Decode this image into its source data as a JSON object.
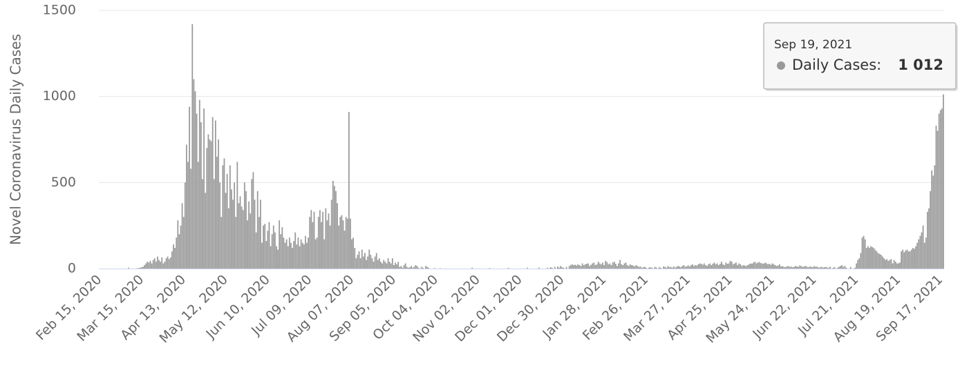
{
  "chart_data": {
    "type": "bar",
    "y_label": "Novel Coronavirus Daily Cases",
    "color": "#999999",
    "grid": true,
    "ylim": [
      0,
      1500
    ],
    "yticks": [
      0,
      500,
      1000,
      1500
    ],
    "categories": [
      "Feb 15, 2020",
      null,
      null,
      null,
      null,
      null,
      null,
      null,
      null,
      null,
      null,
      null,
      null,
      null,
      null,
      null,
      null,
      null,
      null,
      null,
      null,
      null,
      null,
      null,
      null,
      null,
      null,
      null,
      null,
      "Mar 15, 2020",
      null,
      null,
      null,
      null,
      null,
      null,
      null,
      null,
      null,
      null,
      null,
      null,
      null,
      null,
      null,
      null,
      null,
      null,
      null,
      null,
      null,
      null,
      null,
      null,
      null,
      null,
      null,
      null,
      "Apr 13, 2020",
      null,
      null,
      null,
      null,
      null,
      null,
      null,
      null,
      null,
      null,
      null,
      null,
      null,
      null,
      null,
      null,
      null,
      null,
      null,
      null,
      null,
      null,
      null,
      null,
      null,
      null,
      null,
      null,
      "May 12, 2020",
      null,
      null,
      null,
      null,
      null,
      null,
      null,
      null,
      null,
      null,
      null,
      null,
      null,
      null,
      null,
      null,
      null,
      null,
      null,
      null,
      null,
      null,
      null,
      null,
      null,
      null,
      null,
      null,
      "Jun 10, 2020",
      null,
      null,
      null,
      null,
      null,
      null,
      null,
      null,
      null,
      null,
      null,
      null,
      null,
      null,
      null,
      null,
      null,
      null,
      null,
      null,
      null,
      null,
      null,
      null,
      null,
      null,
      null,
      null,
      "Jul 09, 2020",
      null,
      null,
      null,
      null,
      null,
      null,
      null,
      null,
      null,
      null,
      null,
      null,
      null,
      null,
      null,
      null,
      null,
      null,
      null,
      null,
      null,
      null,
      null,
      null,
      null,
      null,
      null,
      null,
      "Aug 07, 2020",
      null,
      null,
      null,
      null,
      null,
      null,
      null,
      null,
      null,
      null,
      null,
      null,
      null,
      null,
      null,
      null,
      null,
      null,
      null,
      null,
      null,
      null,
      null,
      null,
      null,
      null,
      null,
      null,
      "Sep 05, 2020",
      null,
      null,
      null,
      null,
      null,
      null,
      null,
      null,
      null,
      null,
      null,
      null,
      null,
      null,
      null,
      null,
      null,
      null,
      null,
      null,
      null,
      null,
      null,
      null,
      null,
      null,
      null,
      null,
      "Oct 04, 2020",
      null,
      null,
      null,
      null,
      null,
      null,
      null,
      null,
      null,
      null,
      null,
      null,
      null,
      null,
      null,
      null,
      null,
      null,
      null,
      null,
      null,
      null,
      null,
      null,
      null,
      null,
      null,
      null,
      "Nov 02, 2020",
      null,
      null,
      null,
      null,
      null,
      null,
      null,
      null,
      null,
      null,
      null,
      null,
      null,
      null,
      null,
      null,
      null,
      null,
      null,
      null,
      null,
      null,
      null,
      null,
      null,
      null,
      null,
      null,
      "Dec 01, 2020",
      null,
      null,
      null,
      null,
      null,
      null,
      null,
      null,
      null,
      null,
      null,
      null,
      null,
      null,
      null,
      null,
      null,
      null,
      null,
      null,
      null,
      null,
      null,
      null,
      null,
      null,
      null,
      null,
      "Dec 30, 2020",
      null,
      null,
      null,
      null,
      null,
      null,
      null,
      null,
      null,
      null,
      null,
      null,
      null,
      null,
      null,
      null,
      null,
      null,
      null,
      null,
      null,
      null,
      null,
      null,
      null,
      null,
      null,
      null,
      "Jan 28, 2021",
      null,
      null,
      null,
      null,
      null,
      null,
      null,
      null,
      null,
      null,
      null,
      null,
      null,
      null,
      null,
      null,
      null,
      null,
      null,
      null,
      null,
      null,
      null,
      null,
      null,
      null,
      null,
      null,
      "Feb 26, 2021",
      null,
      null,
      null,
      null,
      null,
      null,
      null,
      null,
      null,
      null,
      null,
      null,
      null,
      null,
      null,
      null,
      null,
      null,
      null,
      null,
      null,
      null,
      null,
      null,
      null,
      null,
      null,
      null,
      "Mar 27, 2021",
      null,
      null,
      null,
      null,
      null,
      null,
      null,
      null,
      null,
      null,
      null,
      null,
      null,
      null,
      null,
      null,
      null,
      null,
      null,
      null,
      null,
      null,
      null,
      null,
      null,
      null,
      null,
      null,
      "Apr 25, 2021",
      null,
      null,
      null,
      null,
      null,
      null,
      null,
      null,
      null,
      null,
      null,
      null,
      null,
      null,
      null,
      null,
      null,
      null,
      null,
      null,
      null,
      null,
      null,
      null,
      null,
      null,
      null,
      null,
      "May 24, 2021",
      null,
      null,
      null,
      null,
      null,
      null,
      null,
      null,
      null,
      null,
      null,
      null,
      null,
      null,
      null,
      null,
      null,
      null,
      null,
      null,
      null,
      null,
      null,
      null,
      null,
      null,
      null,
      null,
      "Jun 22, 2021",
      null,
      null,
      null,
      null,
      null,
      null,
      null,
      null,
      null,
      null,
      null,
      null,
      null,
      null,
      null,
      null,
      null,
      null,
      null,
      null,
      null,
      null,
      null,
      null,
      null,
      null,
      null,
      null,
      "Jul 21, 2021",
      null,
      null,
      null,
      null,
      null,
      null,
      null,
      null,
      null,
      null,
      null,
      null,
      null,
      null,
      null,
      null,
      null,
      null,
      null,
      null,
      null,
      null,
      null,
      null,
      null,
      null,
      null,
      null,
      "Aug 19, 2021",
      null,
      null,
      null,
      null,
      null,
      null,
      null,
      null,
      null,
      null,
      null,
      null,
      null,
      null,
      null,
      null,
      null,
      null,
      null,
      null,
      null,
      null,
      null,
      null,
      null,
      null,
      null,
      null,
      "Sep 17, 2021",
      null,
      null
    ],
    "values": [
      0,
      0,
      0,
      0,
      0,
      0,
      0,
      0,
      0,
      0,
      0,
      0,
      0,
      0,
      0,
      0,
      0,
      0,
      0,
      0,
      5,
      0,
      0,
      0,
      0,
      0,
      2,
      3,
      5,
      8,
      10,
      20,
      30,
      40,
      35,
      45,
      30,
      50,
      60,
      40,
      70,
      50,
      40,
      65,
      30,
      40,
      60,
      70,
      55,
      65,
      100,
      140,
      120,
      180,
      280,
      200,
      250,
      380,
      300,
      500,
      720,
      620,
      940,
      580,
      1420,
      1100,
      1030,
      900,
      620,
      980,
      850,
      520,
      930,
      440,
      700,
      780,
      750,
      740,
      880,
      520,
      860,
      650,
      750,
      500,
      300,
      600,
      640,
      440,
      550,
      350,
      600,
      460,
      400,
      500,
      300,
      620,
      380,
      420,
      360,
      340,
      500,
      450,
      280,
      390,
      320,
      520,
      560,
      400,
      210,
      450,
      300,
      400,
      150,
      250,
      260,
      160,
      220,
      270,
      130,
      200,
      250,
      210,
      130,
      110,
      280,
      200,
      240,
      180,
      150,
      170,
      130,
      180,
      150,
      120,
      160,
      210,
      140,
      180,
      130,
      170,
      150,
      140,
      190,
      150,
      180,
      300,
      340,
      270,
      330,
      170,
      180,
      300,
      340,
      270,
      330,
      170,
      350,
      280,
      320,
      250,
      400,
      510,
      480,
      450,
      380,
      250,
      300,
      310,
      280,
      220,
      300,
      290,
      910,
      290,
      170,
      180,
      120,
      60,
      80,
      100,
      60,
      110,
      70,
      90,
      50,
      70,
      110,
      80,
      60,
      40,
      70,
      90,
      50,
      60,
      40,
      30,
      50,
      40,
      30,
      60,
      40,
      30,
      60,
      20,
      35,
      25,
      40,
      10,
      15,
      5,
      20,
      30,
      10,
      5,
      8,
      15,
      5,
      10,
      20,
      15,
      5,
      0,
      10,
      5,
      0,
      15,
      10,
      5,
      0,
      0,
      0,
      3,
      0,
      0,
      0,
      2,
      0,
      0,
      0,
      0,
      0,
      0,
      0,
      0,
      0,
      0,
      0,
      0,
      0,
      0,
      0,
      0,
      0,
      0,
      0,
      0,
      0,
      5,
      0,
      0,
      0,
      0,
      0,
      0,
      0,
      0,
      0,
      0,
      0,
      3,
      0,
      0,
      0,
      0,
      0,
      0,
      0,
      0,
      0,
      0,
      0,
      0,
      4,
      0,
      0,
      0,
      0,
      0,
      0,
      0,
      0,
      0,
      0,
      0,
      0,
      5,
      0,
      0,
      0,
      0,
      0,
      0,
      0,
      6,
      0,
      0,
      0,
      0,
      0,
      5,
      0,
      8,
      5,
      0,
      10,
      0,
      12,
      5,
      15,
      8,
      5,
      0,
      10,
      0,
      15,
      20,
      25,
      20,
      22,
      18,
      25,
      20,
      15,
      30,
      20,
      25,
      28,
      30,
      15,
      22,
      30,
      35,
      20,
      25,
      40,
      30,
      25,
      35,
      20,
      45,
      38,
      25,
      30,
      20,
      35,
      40,
      28,
      15,
      30,
      50,
      25,
      20,
      30,
      35,
      20,
      15,
      25,
      20,
      18,
      12,
      20,
      15,
      10,
      12,
      5,
      8,
      10,
      5,
      0,
      6,
      8,
      5,
      0,
      10,
      6,
      0,
      8,
      5,
      0,
      12,
      10,
      5,
      15,
      8,
      10,
      5,
      12,
      6,
      10,
      15,
      12,
      8,
      15,
      20,
      10,
      14,
      18,
      12,
      20,
      25,
      15,
      20,
      18,
      25,
      30,
      28,
      22,
      30,
      20,
      15,
      25,
      30,
      20,
      28,
      35,
      25,
      30,
      20,
      28,
      40,
      25,
      20,
      35,
      28,
      30,
      45,
      40,
      25,
      30,
      35,
      20,
      30,
      25,
      15,
      20,
      18,
      15,
      20,
      25,
      30,
      28,
      35,
      40,
      30,
      35,
      38,
      32,
      30,
      28,
      35,
      30,
      25,
      28,
      22,
      30,
      25,
      20,
      15,
      18,
      25,
      12,
      15,
      10,
      8,
      12,
      15,
      10,
      12,
      8,
      10,
      15,
      12,
      10,
      18,
      14,
      10,
      12,
      16,
      10,
      8,
      12,
      10,
      8,
      15,
      10,
      12,
      5,
      8,
      10,
      6,
      8,
      10,
      5,
      6,
      10,
      0,
      5,
      8,
      0,
      5,
      10,
      15,
      20,
      10,
      15,
      5,
      0,
      0,
      10,
      0,
      0,
      5,
      30,
      50,
      60,
      90,
      180,
      190,
      170,
      120,
      130,
      120,
      130,
      125,
      120,
      110,
      100,
      90,
      85,
      80,
      70,
      60,
      50,
      55,
      45,
      50,
      55,
      30,
      50,
      40,
      30,
      30,
      35,
      100,
      110,
      95,
      105,
      110,
      100,
      100,
      110,
      120,
      115,
      130,
      150,
      170,
      190,
      210,
      250,
      150,
      180,
      330,
      350,
      450,
      570,
      540,
      600,
      830,
      800,
      900,
      920,
      930,
      1012
    ],
    "tooltip": {
      "title": "Sep 19, 2021",
      "text": "Daily Cases:",
      "value_label": "1 012"
    }
  }
}
